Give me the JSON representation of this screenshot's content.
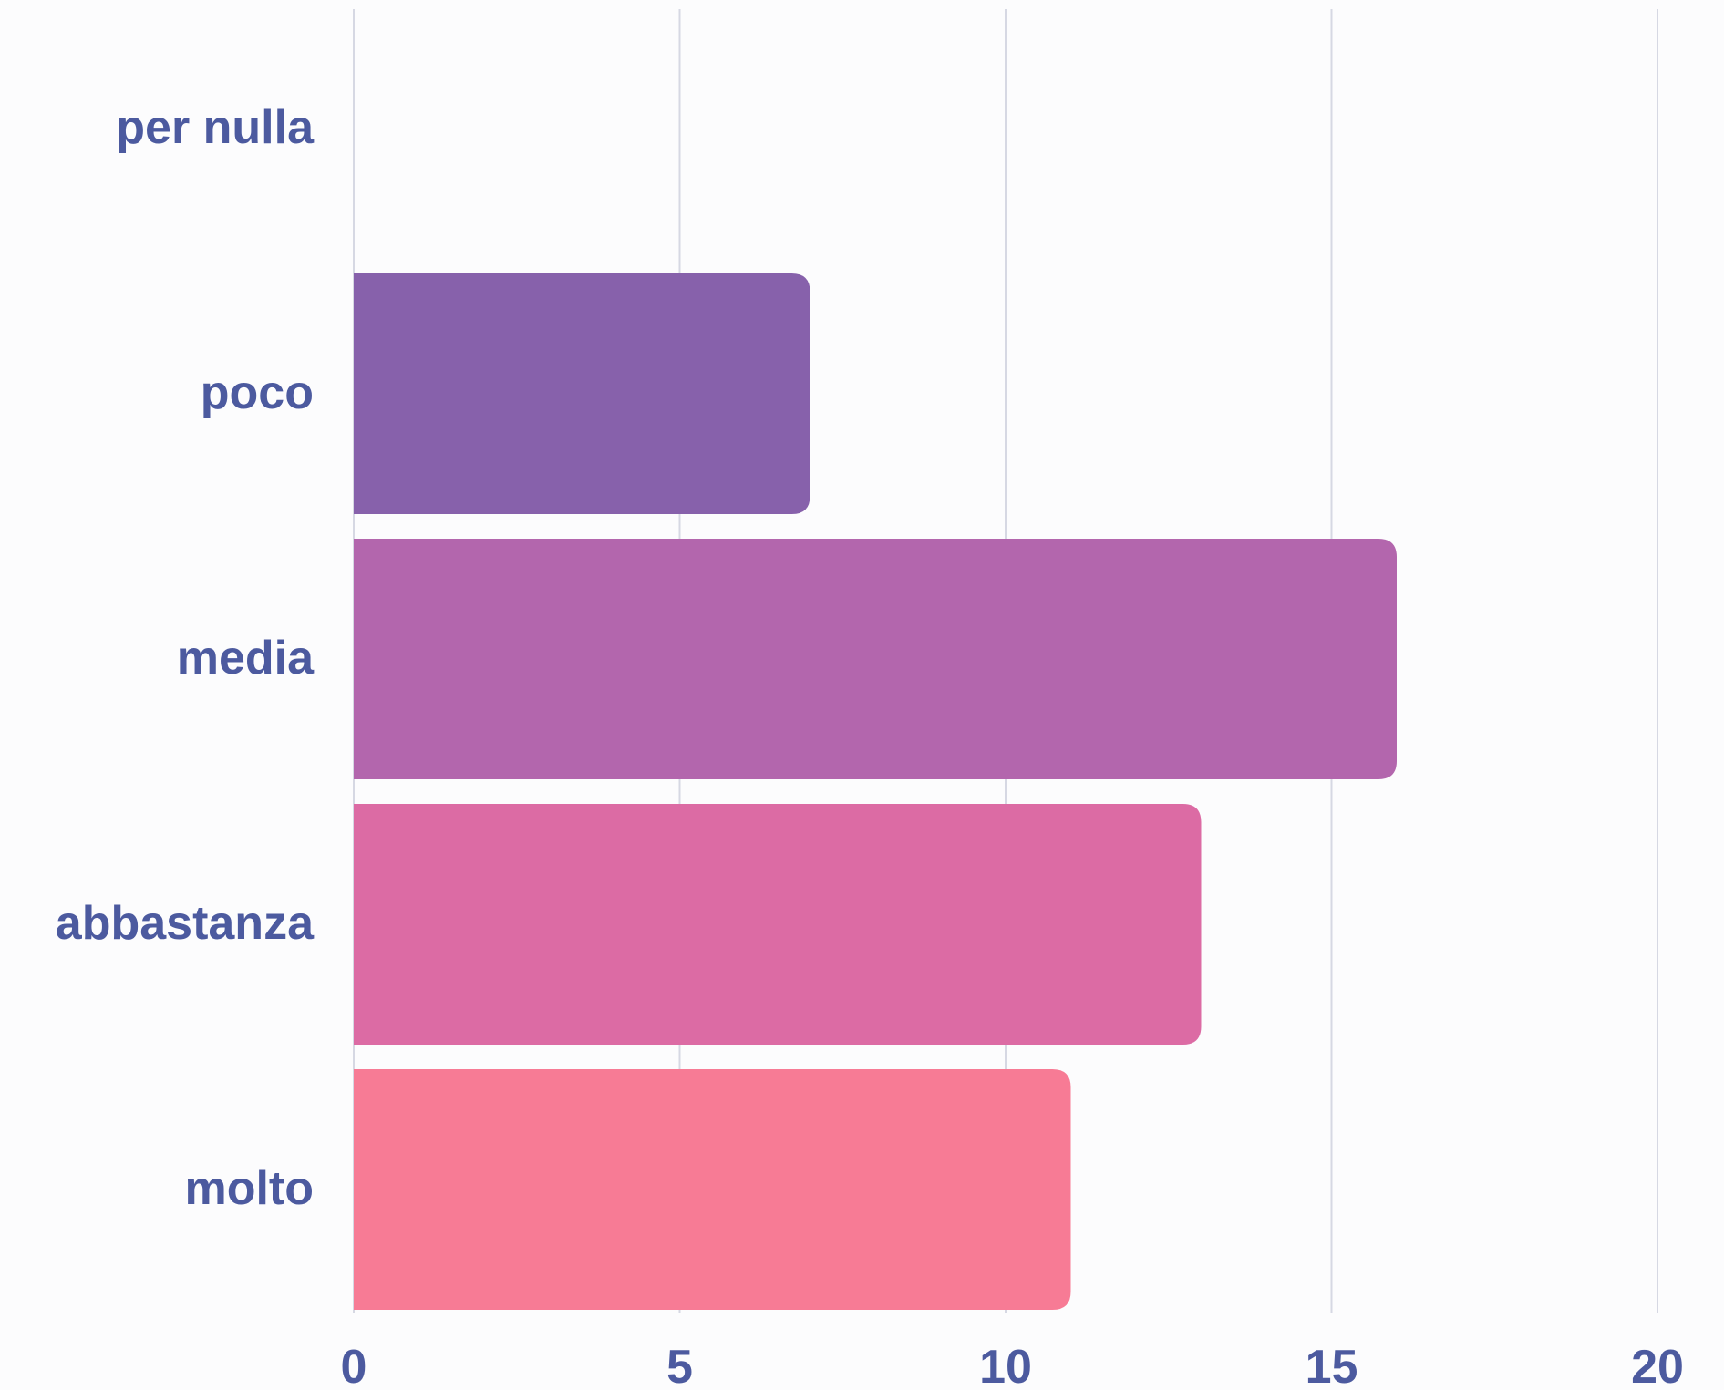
{
  "chart_data": {
    "type": "bar",
    "orientation": "horizontal",
    "categories": [
      "per nulla",
      "poco",
      "media",
      "abbastanza",
      "molto"
    ],
    "values": [
      0,
      7,
      16,
      13,
      11
    ],
    "xlim": [
      0,
      20
    ],
    "xticks": [
      0,
      5,
      10,
      15,
      20
    ],
    "grid": true,
    "title": "",
    "xlabel": "",
    "ylabel": "",
    "colors": [
      "#8761ab",
      "#8761ab",
      "#b366ad",
      "#dc6ba4",
      "#f77b95"
    ],
    "label_color": "#4c5a9f",
    "grid_color": "#d6d8e3"
  }
}
